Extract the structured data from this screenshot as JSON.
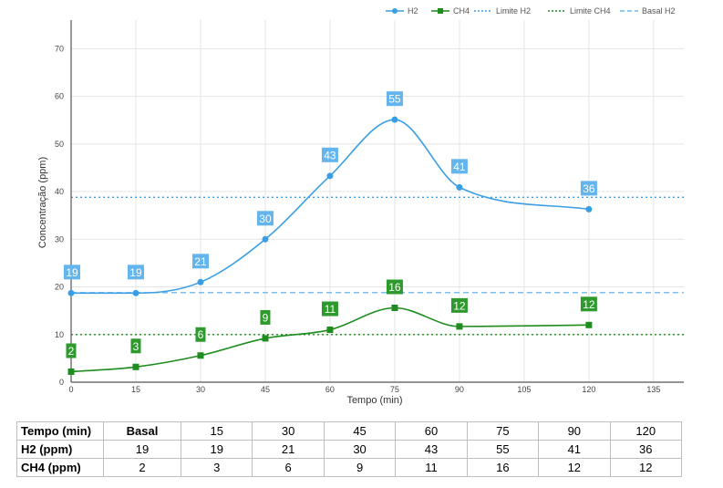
{
  "chart_data": {
    "type": "line",
    "xlabel": "Tempo (min)",
    "ylabel": "Concentração (ppm)",
    "x": [
      0,
      15,
      30,
      45,
      60,
      75,
      90,
      120
    ],
    "xticks": [
      0,
      15,
      30,
      45,
      60,
      75,
      90,
      105,
      120,
      135
    ],
    "yticks": [
      0,
      10,
      20,
      30,
      40,
      50,
      60,
      70
    ],
    "xlim": [
      0,
      142
    ],
    "ylim": [
      0,
      76
    ],
    "grid": true,
    "legend_position": "top-right",
    "series": [
      {
        "name": "H2",
        "values": [
          19,
          19,
          21,
          30,
          43,
          55,
          41,
          36
        ],
        "exact": [
          18.7,
          18.7,
          21.0,
          30.0,
          43.3,
          55.1,
          40.9,
          36.3
        ],
        "color": "#3a9ee4",
        "marker": "circle"
      },
      {
        "name": "CH4",
        "values": [
          2,
          3,
          6,
          9,
          11,
          16,
          12,
          12
        ],
        "exact": [
          2.2,
          3.2,
          5.6,
          9.2,
          11.0,
          15.6,
          11.7,
          12.0
        ],
        "color": "#1e8c1e",
        "marker": "square"
      }
    ],
    "reference_lines": [
      {
        "name": "Limite H2",
        "value": 38.8,
        "color": "#3a9ee4",
        "style": "dotted"
      },
      {
        "name": "Limite CH4",
        "value": 10,
        "color": "#1e8c1e",
        "style": "dotted"
      },
      {
        "name": "Basal H2",
        "value": 18.8,
        "color": "#6cb8ec",
        "style": "dashed"
      }
    ]
  },
  "table": {
    "header": [
      "Tempo (min)",
      "Basal",
      "15",
      "30",
      "45",
      "60",
      "75",
      "90",
      "120"
    ],
    "rows": [
      [
        "H2 (ppm)",
        "19",
        "19",
        "21",
        "30",
        "43",
        "55",
        "41",
        "36"
      ],
      [
        "CH4 (ppm)",
        "2",
        "3",
        "6",
        "9",
        "11",
        "16",
        "12",
        "12"
      ]
    ]
  }
}
